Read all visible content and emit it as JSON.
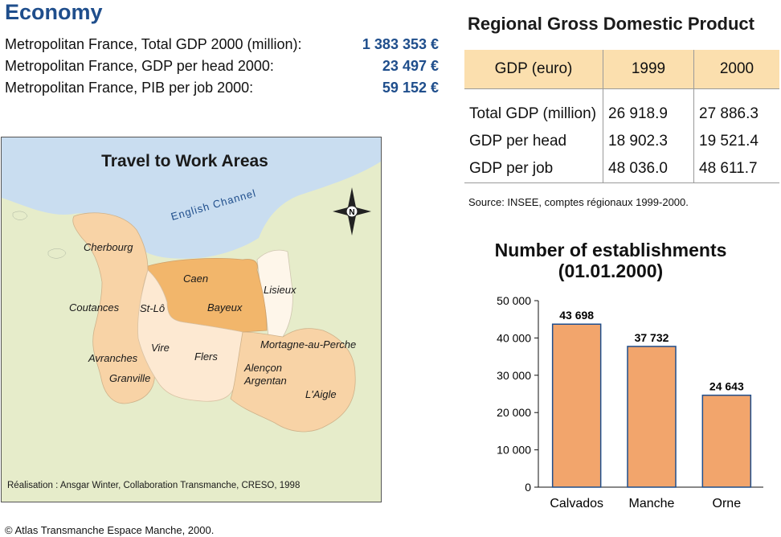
{
  "economy": {
    "title": "Economy",
    "stats": [
      {
        "label": "Metropolitan France, Total GDP 2000 (million):",
        "value": "1 383 353 €"
      },
      {
        "label": "Metropolitan France, GDP per head 2000:",
        "value": "23 497 €"
      },
      {
        "label": "Metropolitan France, PIB per job 2000:",
        "value": "59 152 €"
      }
    ]
  },
  "gdp_table": {
    "title": "Regional Gross Domestic Product",
    "headers": [
      "GDP (euro)",
      "1999",
      "2000"
    ],
    "rows": [
      [
        "Total GDP (million)",
        "26 918.9",
        "27 886.3"
      ],
      [
        "GDP per head",
        "18 902.3",
        "19 521.4"
      ],
      [
        "GDP per job",
        "48 036.0",
        "48 611.7"
      ]
    ],
    "source": "Source: INSEE, comptes régionaux 1999-2000."
  },
  "map": {
    "title": "Travel to Work Areas",
    "sea_label": "English Channel",
    "compass_label": "N",
    "areas": [
      "Cherbourg",
      "Caen",
      "Lisieux",
      "Coutances",
      "St-Lô",
      "Bayeux",
      "Vire",
      "Flers",
      "Avranches",
      "Granville",
      "Mortagne-au-Perche",
      "Alençon",
      "Argentan",
      "L'Aigle"
    ],
    "credit": "Réalisation : Ansgar Winter, Collaboration Transmanche, CRESO, 1998",
    "colors": {
      "sea": "#c9ddf0",
      "land": "#e6ecca",
      "dark": "#f2b66b",
      "mid": "#f8d3a6",
      "light": "#fde9d2",
      "pale": "#fef6ea"
    }
  },
  "chart_data": {
    "type": "bar",
    "title": "Number of establishments\n(01.01.2000)",
    "categories": [
      "Calvados",
      "Manche",
      "Orne"
    ],
    "values": [
      43698,
      37732,
      24643
    ],
    "value_labels": [
      "43 698",
      "37 732",
      "24 643"
    ],
    "ylim": [
      0,
      50000
    ],
    "yticks": [
      0,
      10000,
      20000,
      30000,
      40000,
      50000
    ],
    "ytick_labels": [
      "0",
      "10 000",
      "20 000",
      "30 000",
      "40 000",
      "50 000"
    ],
    "xlabel": "",
    "ylabel": "",
    "grid": false,
    "bar_color": "#f2a56c"
  },
  "footer": {
    "credit": "© Atlas Transmanche Espace Manche, 2000."
  }
}
